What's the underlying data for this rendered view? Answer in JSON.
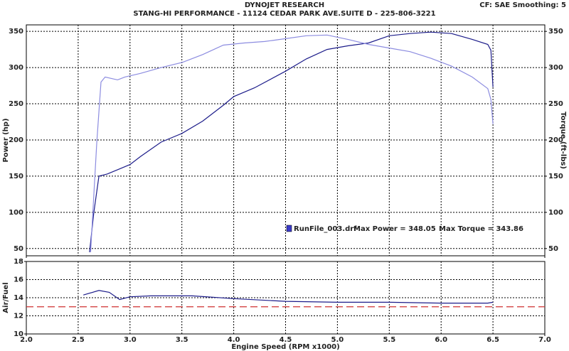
{
  "chart_data": [
    {
      "type": "line",
      "title": "DYNOJET RESEARCH",
      "subtitle": "STANG-HI PERFORMANCE - 11124 CEDAR PARK AVE.SUITE D - 225-806-3221",
      "corner_note": "CF: SAE  Smoothing: 5",
      "ylabel": "Power (hp)",
      "y2label": "Torque (ft-lbs)",
      "legend": {
        "file": "RunFile_003.drf",
        "max_power": "Max Power = 348.05",
        "max_torque": "Max Torque = 343.86",
        "color": "#3a3ac8"
      },
      "xlim": [
        2.0,
        7.0
      ],
      "xticks": [
        2.0,
        2.5,
        3.0,
        3.5,
        4.0,
        4.5,
        5.0,
        5.5,
        6.0,
        6.5,
        7.0
      ],
      "ylim": [
        40,
        359
      ],
      "yticks": [
        50,
        100,
        150,
        200,
        250,
        300,
        350
      ],
      "y2lim": [
        40,
        359
      ],
      "y2ticks": [
        50,
        100,
        150,
        200,
        250,
        300,
        350
      ],
      "grid": true,
      "series": [
        {
          "color": "#1c1c8a",
          "axis": "y",
          "x": [
            2.61,
            2.65,
            2.7,
            2.78,
            2.9,
            3.0,
            3.1,
            3.3,
            3.5,
            3.7,
            3.9,
            4.0,
            4.2,
            4.5,
            4.7,
            4.9,
            5.1,
            5.3,
            5.5,
            5.7,
            5.9,
            6.1,
            6.3,
            6.45,
            6.48,
            6.5
          ],
          "values": [
            45,
            99,
            150,
            153,
            160,
            166,
            177,
            197,
            209,
            226,
            248,
            260,
            272,
            295,
            312,
            325,
            330,
            334,
            344,
            347,
            349,
            347,
            339,
            332,
            324,
            273
          ]
        },
        {
          "color": "#8c8ce0",
          "axis": "y2",
          "x": [
            2.62,
            2.68,
            2.72,
            2.76,
            2.82,
            2.88,
            2.95,
            3.1,
            3.3,
            3.5,
            3.7,
            3.9,
            4.1,
            4.3,
            4.5,
            4.7,
            4.9,
            5.1,
            5.3,
            5.5,
            5.7,
            5.9,
            6.1,
            6.3,
            6.45,
            6.48,
            6.5
          ],
          "values": [
            45,
            197,
            280,
            287,
            285,
            283,
            287,
            292,
            300,
            307,
            318,
            331,
            334,
            336,
            340,
            344,
            345,
            339,
            332,
            327,
            322,
            313,
            302,
            287,
            271,
            256,
            222
          ]
        }
      ]
    },
    {
      "type": "line",
      "ylabel": "Air/Fuel",
      "xlabel": "Engine Speed (RPM x1000)",
      "xlim": [
        2.0,
        7.0
      ],
      "xticks": [
        {
          "value": 2,
          "label": "2.0"
        },
        2.5,
        {
          "value": 3,
          "label": "3.0"
        },
        3.5,
        {
          "value": 4,
          "label": "4.0"
        },
        4.5,
        {
          "value": 5,
          "label": "5.0"
        },
        5.5,
        {
          "value": 6,
          "label": "6.0"
        },
        6.5,
        {
          "value": 7,
          "label": "7.0"
        }
      ],
      "ylim": [
        10,
        18
      ],
      "yticks": [
        10,
        12,
        14,
        16,
        18
      ],
      "grid": true,
      "reference_line": {
        "value": 13,
        "color": "#d03030"
      },
      "series": [
        {
          "color": "#1c1c8a",
          "axis": "y",
          "x": [
            2.55,
            2.7,
            2.8,
            2.9,
            3.0,
            3.2,
            3.6,
            4.0,
            4.5,
            5.0,
            5.5,
            6.0,
            6.45,
            6.5
          ],
          "values": [
            14.3,
            14.8,
            14.6,
            13.8,
            14.1,
            14.2,
            14.2,
            13.9,
            13.6,
            13.5,
            13.5,
            13.4,
            13.4,
            13.5
          ]
        }
      ]
    }
  ]
}
